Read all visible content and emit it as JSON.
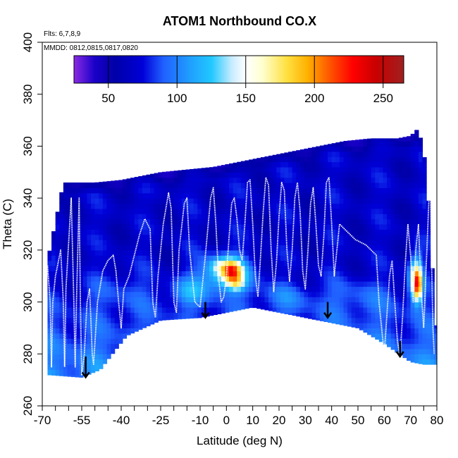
{
  "chart_data": {
    "type": "heatmap",
    "title": "ATOM1 Northbound CO.X",
    "xlabel": "Latitude (deg N)",
    "ylabel": "Theta (C)",
    "xlim": [
      -70,
      80
    ],
    "ylim": [
      260,
      400
    ],
    "x_ticks": [
      -70,
      -55,
      -40,
      -25,
      -10,
      0,
      10,
      20,
      30,
      40,
      50,
      60,
      70,
      80
    ],
    "x_tick_labels": [
      "-70",
      "-55",
      "-40",
      "-25",
      "-10",
      "0",
      "10",
      "20",
      "30",
      "40",
      "50",
      "60",
      "70",
      "80"
    ],
    "x_minor_ticks": [
      -65,
      -60,
      -50,
      -45,
      -35,
      -30,
      -20,
      -15,
      -5,
      5,
      15,
      25,
      35,
      45,
      55,
      65,
      75
    ],
    "y_ticks": [
      260,
      280,
      300,
      320,
      340,
      360,
      380,
      400
    ],
    "y_tick_labels": [
      "260",
      "280",
      "300",
      "320",
      "340",
      "360",
      "380",
      "400"
    ],
    "annotations": {
      "flights": "Flts: 6,7,8,9",
      "dates": "MMDD: 0812,0815,0817,0820"
    },
    "colorbar": {
      "range": [
        25,
        265
      ],
      "ticks": [
        50,
        100,
        150,
        200,
        250
      ],
      "tick_labels": [
        "50",
        "100",
        "150",
        "200",
        "250"
      ],
      "stops": [
        {
          "v": 25,
          "c": "#8a2be2"
        },
        {
          "v": 40,
          "c": "#1a00c8"
        },
        {
          "v": 55,
          "c": "#0000a8"
        },
        {
          "v": 75,
          "c": "#0000d8"
        },
        {
          "v": 90,
          "c": "#2060ff"
        },
        {
          "v": 110,
          "c": "#20a0ff"
        },
        {
          "v": 125,
          "c": "#20c8ff"
        },
        {
          "v": 140,
          "c": "#c8ecff"
        },
        {
          "v": 150,
          "c": "#ffffff"
        },
        {
          "v": 162,
          "c": "#ffffd0"
        },
        {
          "v": 180,
          "c": "#ffe040"
        },
        {
          "v": 195,
          "c": "#ffb000"
        },
        {
          "v": 212,
          "c": "#ff5000"
        },
        {
          "v": 228,
          "c": "#ff0000"
        },
        {
          "v": 245,
          "c": "#c80000"
        },
        {
          "v": 265,
          "c": "#a02020"
        }
      ]
    },
    "ceiling": [
      [
        -68,
        316
      ],
      [
        -62,
        346
      ],
      [
        -50,
        346
      ],
      [
        -40,
        347
      ],
      [
        -30,
        349
      ],
      [
        -25,
        350
      ],
      [
        -15,
        351
      ],
      [
        -5,
        352
      ],
      [
        5,
        354
      ],
      [
        15,
        356
      ],
      [
        25,
        358
      ],
      [
        35,
        360
      ],
      [
        45,
        362
      ],
      [
        55,
        363
      ],
      [
        65,
        363
      ],
      [
        70,
        364
      ],
      [
        73,
        367
      ],
      [
        76,
        352
      ],
      [
        79,
        300
      ],
      [
        80,
        288
      ]
    ],
    "floor": [
      [
        -68,
        272
      ],
      [
        -55,
        271
      ],
      [
        -48,
        274
      ],
      [
        -38,
        287
      ],
      [
        -25,
        293
      ],
      [
        -10,
        294
      ],
      [
        0,
        296
      ],
      [
        10,
        298
      ],
      [
        20,
        296
      ],
      [
        30,
        294
      ],
      [
        40,
        292
      ],
      [
        50,
        290
      ],
      [
        60,
        284
      ],
      [
        70,
        277
      ],
      [
        75,
        276
      ],
      [
        80,
        276
      ]
    ],
    "blobs": [
      {
        "lat": 0,
        "theta": 311,
        "slat": 7,
        "sth": 5,
        "amp": 75
      },
      {
        "lat": 2,
        "theta": 312,
        "slat": 2.5,
        "sth": 3,
        "amp": 85
      },
      {
        "lat": 4,
        "theta": 307,
        "slat": 2,
        "sth": 2,
        "amp": 40
      },
      {
        "lat": -3,
        "theta": 314,
        "slat": 2.5,
        "sth": 2,
        "amp": 25
      },
      {
        "lat": -14,
        "theta": 304,
        "slat": 5,
        "sth": 4,
        "amp": 35
      },
      {
        "lat": 22,
        "theta": 302,
        "slat": 8,
        "sth": 4,
        "amp": 20
      },
      {
        "lat": 72,
        "theta": 309,
        "slat": 1.8,
        "sth": 6,
        "amp": 110
      },
      {
        "lat": 73,
        "theta": 306,
        "slat": 1,
        "sth": 4,
        "amp": 70
      },
      {
        "lat": -40,
        "theta": 305,
        "slat": 10,
        "sth": 6,
        "amp": 15
      },
      {
        "lat": 50,
        "theta": 302,
        "slat": 10,
        "sth": 6,
        "amp": 18
      }
    ],
    "flight_tracks": [
      [
        [
          -68,
          314
        ],
        [
          -67,
          300
        ],
        [
          -66.5,
          275
        ],
        [
          -66,
          300
        ],
        [
          -65,
          310
        ],
        [
          -63,
          320
        ],
        [
          -62,
          300
        ],
        [
          -61.5,
          275
        ],
        [
          -61,
          305
        ],
        [
          -59,
          340
        ],
        [
          -58,
          300
        ],
        [
          -57.5,
          275
        ],
        [
          -57,
          300
        ],
        [
          -56,
          340
        ],
        [
          -55.5,
          300
        ],
        [
          -55,
          272
        ],
        [
          -54,
          280
        ],
        [
          -53,
          300
        ],
        [
          -52,
          305
        ],
        [
          -51,
          280
        ],
        [
          -50.5,
          276
        ],
        [
          -49,
          300
        ],
        [
          -47,
          312
        ],
        [
          -45,
          316
        ],
        [
          -43,
          318
        ],
        [
          -42,
          312
        ],
        [
          -41,
          300
        ],
        [
          -40,
          290
        ],
        [
          -39,
          305
        ],
        [
          -37,
          310
        ],
        [
          -35,
          318
        ],
        [
          -33,
          326
        ],
        [
          -31,
          332
        ],
        [
          -29,
          328
        ],
        [
          -28,
          300
        ],
        [
          -27,
          294
        ],
        [
          -26,
          310
        ],
        [
          -24,
          330
        ],
        [
          -22,
          342
        ],
        [
          -21,
          336
        ],
        [
          -20,
          300
        ],
        [
          -19,
          296
        ],
        [
          -18,
          320
        ],
        [
          -16,
          338
        ],
        [
          -15,
          340
        ],
        [
          -14,
          320
        ],
        [
          -12,
          300
        ],
        [
          -10,
          298
        ],
        [
          -8,
          318
        ],
        [
          -6,
          340
        ],
        [
          -5,
          344
        ],
        [
          -4,
          330
        ],
        [
          -3,
          310
        ],
        [
          -2,
          300
        ],
        [
          -1,
          302
        ],
        [
          0,
          310
        ],
        [
          1,
          325
        ],
        [
          2,
          338
        ],
        [
          3,
          340
        ],
        [
          4,
          332
        ],
        [
          5,
          320
        ],
        [
          6,
          316
        ],
        [
          7,
          330
        ],
        [
          8,
          346
        ],
        [
          9,
          347
        ],
        [
          10,
          330
        ],
        [
          11,
          310
        ],
        [
          12,
          302
        ],
        [
          13,
          318
        ],
        [
          14,
          335
        ],
        [
          15,
          348
        ],
        [
          16,
          345
        ],
        [
          17,
          320
        ],
        [
          18,
          304
        ],
        [
          19,
          315
        ],
        [
          20,
          333
        ],
        [
          21,
          346
        ],
        [
          22,
          343
        ],
        [
          23,
          320
        ],
        [
          24,
          308
        ],
        [
          25,
          320
        ],
        [
          26,
          340
        ],
        [
          27,
          346
        ],
        [
          28,
          335
        ],
        [
          29,
          312
        ],
        [
          30,
          305
        ],
        [
          31,
          320
        ],
        [
          32,
          338
        ],
        [
          33,
          344
        ],
        [
          34,
          330
        ],
        [
          35,
          314
        ],
        [
          36,
          310
        ],
        [
          37,
          325
        ],
        [
          38,
          346
        ],
        [
          39,
          348
        ],
        [
          40,
          330
        ],
        [
          41,
          310
        ],
        [
          42,
          320
        ],
        [
          43,
          330
        ],
        [
          45,
          328
        ],
        [
          47,
          326
        ],
        [
          49,
          324
        ],
        [
          51,
          323
        ],
        [
          53,
          322
        ],
        [
          55,
          320
        ],
        [
          57,
          318
        ],
        [
          58,
          300
        ],
        [
          59,
          290
        ],
        [
          60,
          280
        ],
        [
          61,
          295
        ],
        [
          62,
          310
        ],
        [
          63,
          316
        ],
        [
          64,
          300
        ],
        [
          65,
          285
        ],
        [
          66,
          279
        ],
        [
          67,
          295
        ],
        [
          68,
          315
        ],
        [
          69,
          330
        ],
        [
          70,
          318
        ],
        [
          71,
          300
        ],
        [
          72,
          320
        ],
        [
          73,
          330
        ],
        [
          74,
          305
        ],
        [
          75,
          290
        ],
        [
          76,
          315
        ],
        [
          77,
          340
        ],
        [
          77.5,
          350
        ],
        [
          78,
          315
        ],
        [
          78.5,
          290
        ],
        [
          79,
          280
        ]
      ]
    ],
    "profile_arrows": [
      {
        "lat": -53.5,
        "theta_top": 279,
        "theta_tip": 271
      },
      {
        "lat": -8,
        "theta_top": 300,
        "theta_tip": 294
      },
      {
        "lat": 38.5,
        "theta_top": 300,
        "theta_tip": 294
      },
      {
        "lat": 66,
        "theta_top": 285,
        "theta_tip": 279
      }
    ]
  }
}
